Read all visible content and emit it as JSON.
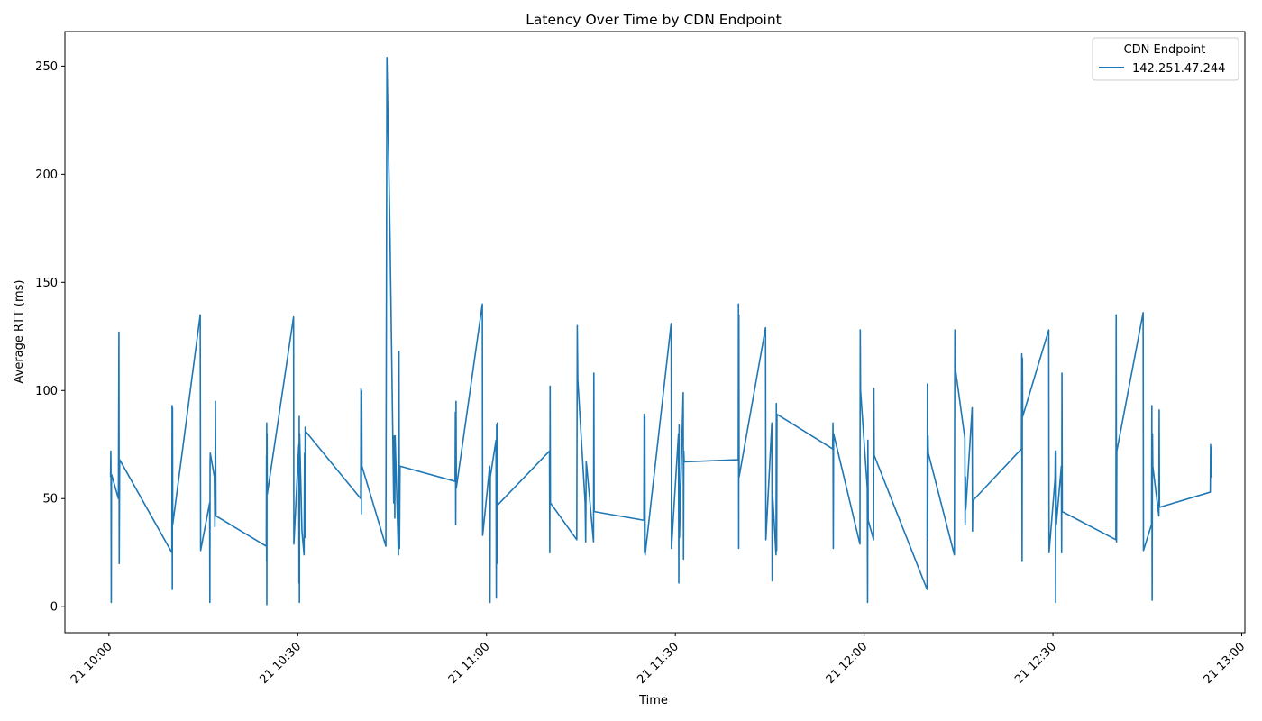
{
  "chart_data": {
    "type": "line",
    "title": "Latency Over Time by CDN Endpoint",
    "xlabel": "Time",
    "ylabel": "Average RTT (ms)",
    "ylim": [
      -12,
      266
    ],
    "xlim": [
      "2024-01-21T09:53",
      "2024-01-21T13:00:30"
    ],
    "x_ticks": [
      {
        "t": "2024-01-21T10:00",
        "label": "21 10:00"
      },
      {
        "t": "2024-01-21T10:30",
        "label": "21 10:30"
      },
      {
        "t": "2024-01-21T11:00",
        "label": "21 11:00"
      },
      {
        "t": "2024-01-21T11:30",
        "label": "21 11:30"
      },
      {
        "t": "2024-01-21T12:00",
        "label": "21 12:00"
      },
      {
        "t": "2024-01-21T12:30",
        "label": "21 12:30"
      },
      {
        "t": "2024-01-21T13:00",
        "label": "21 13:00"
      }
    ],
    "y_ticks": [
      0,
      50,
      100,
      150,
      200,
      250
    ],
    "grid": false,
    "legend": {
      "title": "CDN Endpoint",
      "placement": "top-right"
    },
    "series": [
      {
        "name": "142.251.47.244",
        "color": "#1f77b4",
        "points": [
          [
            "2024-01-21T10:00:15",
            60
          ],
          [
            "2024-01-21T10:00:18",
            72
          ],
          [
            "2024-01-21T10:00:20",
            55
          ],
          [
            "2024-01-21T10:00:22",
            2
          ],
          [
            "2024-01-21T10:00:24",
            58
          ],
          [
            "2024-01-21T10:00:26",
            61
          ],
          [
            "2024-01-21T10:01:30",
            50
          ],
          [
            "2024-01-21T10:01:35",
            127
          ],
          [
            "2024-01-21T10:01:38",
            20
          ],
          [
            "2024-01-21T10:01:42",
            68
          ],
          [
            "2024-01-21T10:10:00",
            25
          ],
          [
            "2024-01-21T10:10:02",
            93
          ],
          [
            "2024-01-21T10:10:04",
            8
          ],
          [
            "2024-01-21T10:10:06",
            92
          ],
          [
            "2024-01-21T10:10:08",
            38
          ],
          [
            "2024-01-21T10:14:30",
            135
          ],
          [
            "2024-01-21T10:14:34",
            26
          ],
          [
            "2024-01-21T10:16:00",
            48
          ],
          [
            "2024-01-21T10:16:02",
            2
          ],
          [
            "2024-01-21T10:16:04",
            65
          ],
          [
            "2024-01-21T10:16:06",
            71
          ],
          [
            "2024-01-21T10:16:45",
            60
          ],
          [
            "2024-01-21T10:16:50",
            37
          ],
          [
            "2024-01-21T10:16:55",
            95
          ],
          [
            "2024-01-21T10:17:00",
            42
          ],
          [
            "2024-01-21T10:25:00",
            28
          ],
          [
            "2024-01-21T10:25:02",
            70
          ],
          [
            "2024-01-21T10:25:03",
            21
          ],
          [
            "2024-01-21T10:25:04",
            85
          ],
          [
            "2024-01-21T10:25:05",
            1
          ],
          [
            "2024-01-21T10:25:07",
            80
          ],
          [
            "2024-01-21T10:25:09",
            52
          ],
          [
            "2024-01-21T10:29:20",
            134
          ],
          [
            "2024-01-21T10:29:23",
            29
          ],
          [
            "2024-01-21T10:30:10",
            75
          ],
          [
            "2024-01-21T10:30:12",
            11
          ],
          [
            "2024-01-21T10:30:14",
            88
          ],
          [
            "2024-01-21T10:30:16",
            2
          ],
          [
            "2024-01-21T10:30:18",
            80
          ],
          [
            "2024-01-21T10:30:40",
            35
          ],
          [
            "2024-01-21T10:31:00",
            24
          ],
          [
            "2024-01-21T10:31:05",
            71
          ],
          [
            "2024-01-21T10:31:08",
            32
          ],
          [
            "2024-01-21T10:31:11",
            83
          ],
          [
            "2024-01-21T10:31:14",
            33
          ],
          [
            "2024-01-21T10:31:17",
            81
          ],
          [
            "2024-01-21T10:40:00",
            50
          ],
          [
            "2024-01-21T10:40:03",
            101
          ],
          [
            "2024-01-21T10:40:06",
            43
          ],
          [
            "2024-01-21T10:40:09",
            100
          ],
          [
            "2024-01-21T10:40:12",
            65
          ],
          [
            "2024-01-21T10:44:00",
            28
          ],
          [
            "2024-01-21T10:44:10",
            254
          ],
          [
            "2024-01-21T10:44:40",
            170
          ],
          [
            "2024-01-21T10:45:15",
            48
          ],
          [
            "2024-01-21T10:45:20",
            79
          ],
          [
            "2024-01-21T10:45:25",
            41
          ],
          [
            "2024-01-21T10:45:28",
            79
          ],
          [
            "2024-01-21T10:46:00",
            24
          ],
          [
            "2024-01-21T10:46:05",
            118
          ],
          [
            "2024-01-21T10:46:10",
            27
          ],
          [
            "2024-01-21T10:46:15",
            65
          ],
          [
            "2024-01-21T10:55:00",
            58
          ],
          [
            "2024-01-21T10:55:03",
            90
          ],
          [
            "2024-01-21T10:55:06",
            38
          ],
          [
            "2024-01-21T10:55:09",
            95
          ],
          [
            "2024-01-21T10:55:12",
            55
          ],
          [
            "2024-01-21T10:59:20",
            140
          ],
          [
            "2024-01-21T10:59:23",
            33
          ],
          [
            "2024-01-21T11:00:30",
            65
          ],
          [
            "2024-01-21T11:00:33",
            2
          ],
          [
            "2024-01-21T11:00:36",
            60
          ],
          [
            "2024-01-21T11:01:30",
            77
          ],
          [
            "2024-01-21T11:01:33",
            4
          ],
          [
            "2024-01-21T11:01:36",
            84
          ],
          [
            "2024-01-21T11:01:39",
            20
          ],
          [
            "2024-01-21T11:01:42",
            85
          ],
          [
            "2024-01-21T11:01:45",
            47
          ],
          [
            "2024-01-21T11:10:00",
            72
          ],
          [
            "2024-01-21T11:10:03",
            25
          ],
          [
            "2024-01-21T11:10:06",
            102
          ],
          [
            "2024-01-21T11:10:09",
            48
          ],
          [
            "2024-01-21T11:14:20",
            31
          ],
          [
            "2024-01-21T11:14:25",
            130
          ],
          [
            "2024-01-21T11:14:30",
            105
          ],
          [
            "2024-01-21T11:15:40",
            48
          ],
          [
            "2024-01-21T11:15:45",
            30
          ],
          [
            "2024-01-21T11:15:50",
            67
          ],
          [
            "2024-01-21T11:15:55",
            65
          ],
          [
            "2024-01-21T11:17:00",
            30
          ],
          [
            "2024-01-21T11:17:03",
            108
          ],
          [
            "2024-01-21T11:17:06",
            44
          ],
          [
            "2024-01-21T11:25:00",
            40
          ],
          [
            "2024-01-21T11:25:03",
            89
          ],
          [
            "2024-01-21T11:25:06",
            25
          ],
          [
            "2024-01-21T11:25:09",
            88
          ],
          [
            "2024-01-21T11:25:12",
            24
          ],
          [
            "2024-01-21T11:29:20",
            131
          ],
          [
            "2024-01-21T11:29:23",
            27
          ],
          [
            "2024-01-21T11:30:30",
            80
          ],
          [
            "2024-01-21T11:30:33",
            11
          ],
          [
            "2024-01-21T11:30:36",
            84
          ],
          [
            "2024-01-21T11:30:39",
            32
          ],
          [
            "2024-01-21T11:31:15",
            99
          ],
          [
            "2024-01-21T11:31:18",
            22
          ],
          [
            "2024-01-21T11:31:21",
            72
          ],
          [
            "2024-01-21T11:31:24",
            67
          ],
          [
            "2024-01-21T11:40:00",
            68
          ],
          [
            "2024-01-21T11:40:02",
            140
          ],
          [
            "2024-01-21T11:40:04",
            27
          ],
          [
            "2024-01-21T11:40:06",
            135
          ],
          [
            "2024-01-21T11:40:08",
            60
          ],
          [
            "2024-01-21T11:44:20",
            129
          ],
          [
            "2024-01-21T11:44:23",
            31
          ],
          [
            "2024-01-21T11:45:20",
            85
          ],
          [
            "2024-01-21T11:45:23",
            12
          ],
          [
            "2024-01-21T11:45:26",
            53
          ],
          [
            "2024-01-21T11:46:00",
            24
          ],
          [
            "2024-01-21T11:46:03",
            94
          ],
          [
            "2024-01-21T11:46:06",
            26
          ],
          [
            "2024-01-21T11:46:09",
            89
          ],
          [
            "2024-01-21T11:55:00",
            73
          ],
          [
            "2024-01-21T11:55:03",
            85
          ],
          [
            "2024-01-21T11:55:06",
            27
          ],
          [
            "2024-01-21T11:55:09",
            80
          ],
          [
            "2024-01-21T11:59:20",
            29
          ],
          [
            "2024-01-21T11:59:23",
            128
          ],
          [
            "2024-01-21T11:59:26",
            100
          ],
          [
            "2024-01-21T12:00:30",
            55
          ],
          [
            "2024-01-21T12:00:33",
            2
          ],
          [
            "2024-01-21T12:00:36",
            77
          ],
          [
            "2024-01-21T12:00:39",
            40
          ],
          [
            "2024-01-21T12:01:30",
            31
          ],
          [
            "2024-01-21T12:01:33",
            101
          ],
          [
            "2024-01-21T12:01:36",
            70
          ],
          [
            "2024-01-21T12:10:00",
            8
          ],
          [
            "2024-01-21T12:10:03",
            103
          ],
          [
            "2024-01-21T12:10:06",
            32
          ],
          [
            "2024-01-21T12:10:09",
            79
          ],
          [
            "2024-01-21T12:10:12",
            71
          ],
          [
            "2024-01-21T12:14:20",
            24
          ],
          [
            "2024-01-21T12:14:25",
            128
          ],
          [
            "2024-01-21T12:14:30",
            110
          ],
          [
            "2024-01-21T12:16:00",
            78
          ],
          [
            "2024-01-21T12:16:03",
            38
          ],
          [
            "2024-01-21T12:16:06",
            60
          ],
          [
            "2024-01-21T12:16:09",
            45
          ],
          [
            "2024-01-21T12:17:10",
            92
          ],
          [
            "2024-01-21T12:17:13",
            35
          ],
          [
            "2024-01-21T12:17:16",
            49
          ],
          [
            "2024-01-21T12:25:00",
            73
          ],
          [
            "2024-01-21T12:25:03",
            117
          ],
          [
            "2024-01-21T12:25:06",
            21
          ],
          [
            "2024-01-21T12:25:09",
            115
          ],
          [
            "2024-01-21T12:25:12",
            88
          ],
          [
            "2024-01-21T12:29:20",
            128
          ],
          [
            "2024-01-21T12:29:23",
            25
          ],
          [
            "2024-01-21T12:30:20",
            59
          ],
          [
            "2024-01-21T12:30:23",
            72
          ],
          [
            "2024-01-21T12:30:26",
            2
          ],
          [
            "2024-01-21T12:30:29",
            72
          ],
          [
            "2024-01-21T12:30:32",
            38
          ],
          [
            "2024-01-21T12:31:20",
            65
          ],
          [
            "2024-01-21T12:31:23",
            25
          ],
          [
            "2024-01-21T12:31:26",
            108
          ],
          [
            "2024-01-21T12:31:29",
            44
          ],
          [
            "2024-01-21T12:40:00",
            31
          ],
          [
            "2024-01-21T12:40:03",
            135
          ],
          [
            "2024-01-21T12:40:06",
            30
          ],
          [
            "2024-01-21T12:40:09",
            72
          ],
          [
            "2024-01-21T12:44:20",
            136
          ],
          [
            "2024-01-21T12:44:23",
            26
          ],
          [
            "2024-01-21T12:45:40",
            38
          ],
          [
            "2024-01-21T12:45:43",
            93
          ],
          [
            "2024-01-21T12:45:46",
            3
          ],
          [
            "2024-01-21T12:45:49",
            80
          ],
          [
            "2024-01-21T12:45:52",
            65
          ],
          [
            "2024-01-21T12:46:50",
            42
          ],
          [
            "2024-01-21T12:46:53",
            91
          ],
          [
            "2024-01-21T12:46:56",
            46
          ],
          [
            "2024-01-21T12:55:00",
            53
          ],
          [
            "2024-01-21T12:55:03",
            75
          ],
          [
            "2024-01-21T12:55:06",
            60
          ],
          [
            "2024-01-21T12:55:09",
            74
          ]
        ]
      }
    ]
  }
}
